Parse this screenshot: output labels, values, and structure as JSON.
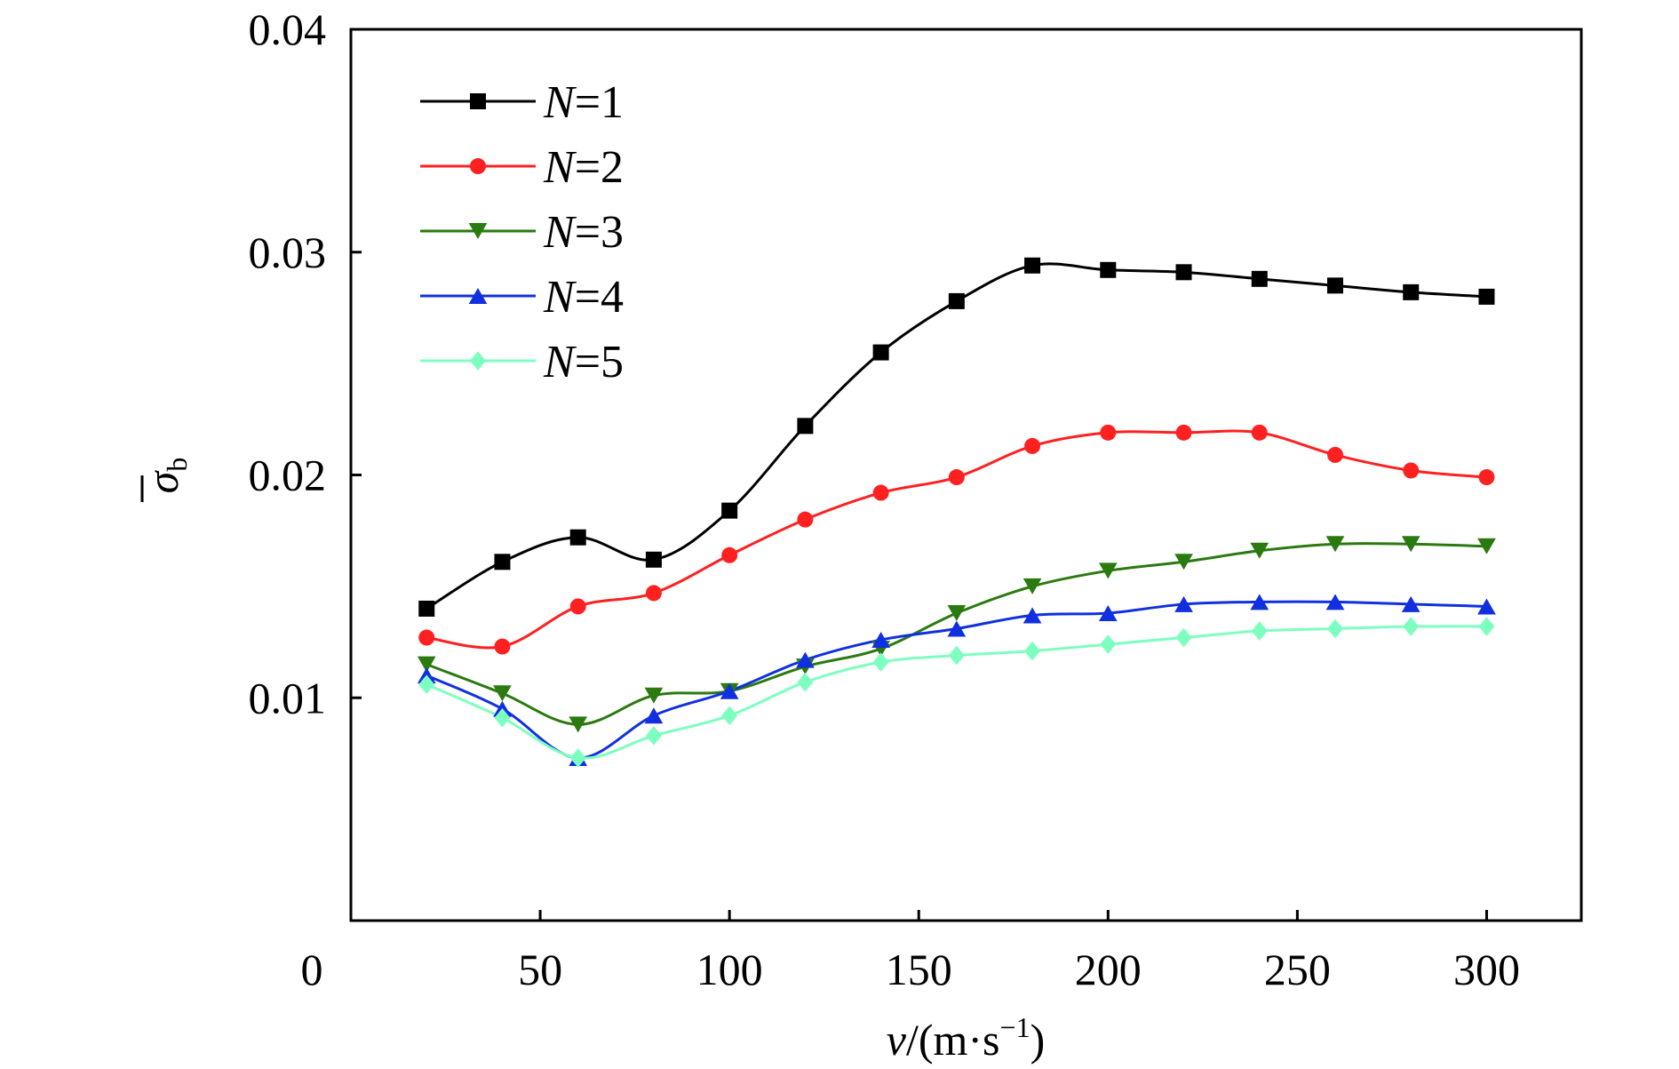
{
  "chart_data": {
    "type": "line",
    "xlabel": {
      "var": "v",
      "sep": "/(m·s",
      "sup": "−1",
      "end": ")"
    },
    "ylabel": {
      "symbol": "σ",
      "sub": "b"
    },
    "x_origin_label": "0",
    "xlim": [
      0,
      325
    ],
    "ylim": [
      0,
      0.04
    ],
    "xticks": [
      50,
      100,
      150,
      200,
      250,
      300
    ],
    "xtick_labels": [
      "50",
      "100",
      "150",
      "200",
      "250",
      "300"
    ],
    "yticks": [
      0.01,
      0.02,
      0.03,
      0.04
    ],
    "ytick_labels": [
      "0.01",
      "0.02",
      "0.03",
      "0.04"
    ],
    "grid": false,
    "legend_position": "top-left",
    "x": [
      20,
      40,
      60,
      80,
      100,
      120,
      140,
      160,
      180,
      200,
      220,
      240,
      260,
      280,
      300
    ],
    "series": [
      {
        "name_italic": "N",
        "name_rest": "=1",
        "color": "#000000",
        "marker": "square",
        "values": [
          0.014,
          0.0161,
          0.0172,
          0.0162,
          0.0184,
          0.0222,
          0.0255,
          0.0278,
          0.0294,
          0.0292,
          0.0291,
          0.0288,
          0.0285,
          0.0282,
          0.028
        ]
      },
      {
        "name_italic": "N",
        "name_rest": "=2",
        "color": "#ff2020",
        "marker": "circle",
        "values": [
          0.0127,
          0.0123,
          0.0141,
          0.0147,
          0.0164,
          0.018,
          0.0192,
          0.0199,
          0.0213,
          0.0219,
          0.0219,
          0.0219,
          0.0209,
          0.0202,
          0.0199
        ]
      },
      {
        "name_italic": "N",
        "name_rest": "=3",
        "color": "#2a7a10",
        "marker": "triangle-down",
        "values": [
          0.0115,
          0.0102,
          0.0088,
          0.0101,
          0.0103,
          0.0114,
          0.0122,
          0.0138,
          0.015,
          0.0157,
          0.0161,
          0.0166,
          0.0169,
          0.0169,
          0.0168
        ]
      },
      {
        "name_italic": "N",
        "name_rest": "=4",
        "color": "#1030e0",
        "marker": "triangle-up",
        "values": [
          0.011,
          0.0095,
          0.0073,
          0.0092,
          0.0103,
          0.0117,
          0.0126,
          0.0131,
          0.0137,
          0.0138,
          0.0142,
          0.0143,
          0.0143,
          0.0142,
          0.0141
        ]
      },
      {
        "name_italic": "N",
        "name_rest": "=5",
        "color": "#7dffc0",
        "marker": "diamond",
        "values": [
          0.0106,
          0.0091,
          0.0073,
          0.0083,
          0.0092,
          0.0107,
          0.0116,
          0.0119,
          0.0121,
          0.0124,
          0.0127,
          0.013,
          0.0131,
          0.0132,
          0.0132
        ]
      }
    ]
  }
}
